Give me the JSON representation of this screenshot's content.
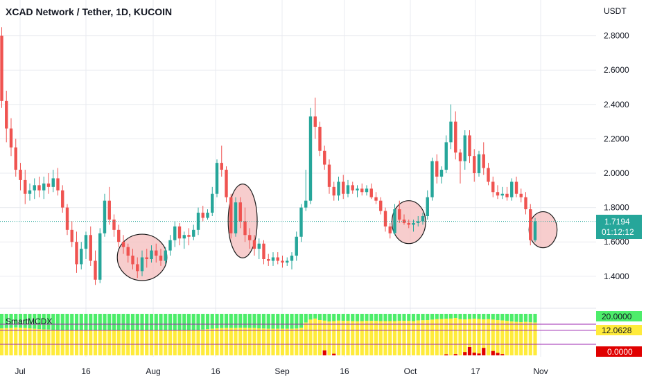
{
  "header": {
    "title": "XCAD Network / Tether, 1D, KUCOIN",
    "currency": "USDT"
  },
  "indicator": {
    "name": "SmartMCDX"
  },
  "colors": {
    "up": "#26a69a",
    "down": "#ef5350",
    "grid": "#e9ebf0",
    "highlight_fill": "#f4bcbc",
    "highlight_stroke": "#1b1b1b",
    "ind_green": "#4ded6a",
    "ind_yellow": "#ffeb3b",
    "ind_red": "#e00000",
    "ind_line": "#9c27b0",
    "current_price": "#26a69a"
  },
  "price_badge": {
    "price": "1.7194",
    "countdown": "01:12:12"
  },
  "indicator_badges": {
    "top": "20.0000",
    "mid": "12.0628",
    "bottom": "0.0000"
  },
  "chart_data": {
    "type": "candlestick",
    "title": "XCAD Network / Tether, 1D, KUCOIN",
    "y_axis_label": "USDT",
    "y_ticks": [
      "2.8000",
      "2.6000",
      "2.4000",
      "2.2000",
      "2.0000",
      "1.8000",
      "1.6000",
      "1.4000"
    ],
    "ylim": [
      1.3,
      2.88
    ],
    "x_ticks": [
      "Jul",
      "16",
      "Aug",
      "16",
      "Sep",
      "16",
      "Oct",
      "17",
      "Nov"
    ],
    "candles_ohlc": [
      [
        2.8,
        2.85,
        2.38,
        2.42
      ],
      [
        2.42,
        2.48,
        2.18,
        2.26
      ],
      [
        2.26,
        2.32,
        2.1,
        2.15
      ],
      [
        2.15,
        2.2,
        1.98,
        2.02
      ],
      [
        2.02,
        2.06,
        1.9,
        1.96
      ],
      [
        1.96,
        2.02,
        1.82,
        1.88
      ],
      [
        1.88,
        1.94,
        1.84,
        1.9
      ],
      [
        1.9,
        1.97,
        1.85,
        1.93
      ],
      [
        1.93,
        1.98,
        1.86,
        1.9
      ],
      [
        1.9,
        1.98,
        1.85,
        1.94
      ],
      [
        1.94,
        2.0,
        1.88,
        1.92
      ],
      [
        1.92,
        2.02,
        1.89,
        1.97
      ],
      [
        1.97,
        2.03,
        1.87,
        1.9
      ],
      [
        1.9,
        1.93,
        1.77,
        1.8
      ],
      [
        1.8,
        1.82,
        1.64,
        1.67
      ],
      [
        1.67,
        1.72,
        1.57,
        1.6
      ],
      [
        1.6,
        1.66,
        1.42,
        1.47
      ],
      [
        1.47,
        1.6,
        1.44,
        1.56
      ],
      [
        1.56,
        1.66,
        1.5,
        1.64
      ],
      [
        1.64,
        1.69,
        1.46,
        1.49
      ],
      [
        1.49,
        1.55,
        1.35,
        1.38
      ],
      [
        1.38,
        1.68,
        1.36,
        1.65
      ],
      [
        1.65,
        1.88,
        1.63,
        1.84
      ],
      [
        1.84,
        1.92,
        1.7,
        1.73
      ],
      [
        1.73,
        1.76,
        1.63,
        1.67
      ],
      [
        1.67,
        1.7,
        1.57,
        1.6
      ],
      [
        1.6,
        1.64,
        1.53,
        1.57
      ],
      [
        1.57,
        1.59,
        1.48,
        1.52
      ],
      [
        1.52,
        1.56,
        1.44,
        1.47
      ],
      [
        1.47,
        1.51,
        1.39,
        1.43
      ],
      [
        1.43,
        1.55,
        1.4,
        1.51
      ],
      [
        1.51,
        1.56,
        1.45,
        1.5
      ],
      [
        1.5,
        1.58,
        1.48,
        1.55
      ],
      [
        1.55,
        1.59,
        1.48,
        1.52
      ],
      [
        1.52,
        1.56,
        1.46,
        1.49
      ],
      [
        1.49,
        1.57,
        1.47,
        1.55
      ],
      [
        1.55,
        1.64,
        1.52,
        1.61
      ],
      [
        1.61,
        1.72,
        1.57,
        1.69
      ],
      [
        1.69,
        1.71,
        1.58,
        1.62
      ],
      [
        1.62,
        1.66,
        1.56,
        1.64
      ],
      [
        1.64,
        1.68,
        1.58,
        1.63
      ],
      [
        1.63,
        1.7,
        1.61,
        1.67
      ],
      [
        1.67,
        1.8,
        1.64,
        1.77
      ],
      [
        1.77,
        1.81,
        1.72,
        1.74
      ],
      [
        1.74,
        1.79,
        1.73,
        1.77
      ],
      [
        1.77,
        1.92,
        1.75,
        1.88
      ],
      [
        1.88,
        2.08,
        1.86,
        2.06
      ],
      [
        2.06,
        2.16,
        1.98,
        2.02
      ],
      [
        2.02,
        2.04,
        1.83,
        1.86
      ],
      [
        1.86,
        1.88,
        1.62,
        1.65
      ],
      [
        1.65,
        1.86,
        1.63,
        1.83
      ],
      [
        1.83,
        1.86,
        1.68,
        1.72
      ],
      [
        1.72,
        1.8,
        1.6,
        1.64
      ],
      [
        1.64,
        1.68,
        1.56,
        1.61
      ],
      [
        1.61,
        1.64,
        1.52,
        1.56
      ],
      [
        1.56,
        1.62,
        1.5,
        1.59
      ],
      [
        1.59,
        1.61,
        1.47,
        1.5
      ],
      [
        1.5,
        1.53,
        1.46,
        1.49
      ],
      [
        1.49,
        1.54,
        1.46,
        1.51
      ],
      [
        1.51,
        1.54,
        1.47,
        1.49
      ],
      [
        1.49,
        1.52,
        1.45,
        1.48
      ],
      [
        1.48,
        1.51,
        1.46,
        1.49
      ],
      [
        1.49,
        1.54,
        1.44,
        1.52
      ],
      [
        1.52,
        1.66,
        1.49,
        1.63
      ],
      [
        1.63,
        1.82,
        1.6,
        1.8
      ],
      [
        1.8,
        2.02,
        1.78,
        1.84
      ],
      [
        1.84,
        2.38,
        1.82,
        2.33
      ],
      [
        2.33,
        2.44,
        2.2,
        2.27
      ],
      [
        2.27,
        2.3,
        2.1,
        2.13
      ],
      [
        2.13,
        2.16,
        2.02,
        2.05
      ],
      [
        2.05,
        2.08,
        1.88,
        1.92
      ],
      [
        1.92,
        1.95,
        1.84,
        1.87
      ],
      [
        1.87,
        1.98,
        1.84,
        1.95
      ],
      [
        1.95,
        1.99,
        1.85,
        1.88
      ],
      [
        1.88,
        1.96,
        1.86,
        1.93
      ],
      [
        1.93,
        1.95,
        1.88,
        1.9
      ],
      [
        1.9,
        1.93,
        1.86,
        1.91
      ],
      [
        1.91,
        1.94,
        1.87,
        1.89
      ],
      [
        1.89,
        1.93,
        1.87,
        1.91
      ],
      [
        1.91,
        1.94,
        1.85,
        1.86
      ],
      [
        1.86,
        1.89,
        1.82,
        1.84
      ],
      [
        1.84,
        1.86,
        1.76,
        1.78
      ],
      [
        1.78,
        1.8,
        1.66,
        1.69
      ],
      [
        1.69,
        1.71,
        1.62,
        1.65
      ],
      [
        1.65,
        1.82,
        1.64,
        1.79
      ],
      [
        1.79,
        1.84,
        1.71,
        1.73
      ],
      [
        1.73,
        1.76,
        1.7,
        1.71
      ],
      [
        1.71,
        1.73,
        1.68,
        1.7
      ],
      [
        1.7,
        1.73,
        1.66,
        1.71
      ],
      [
        1.71,
        1.75,
        1.69,
        1.72
      ],
      [
        1.72,
        1.77,
        1.7,
        1.75
      ],
      [
        1.75,
        1.9,
        1.73,
        1.86
      ],
      [
        1.86,
        2.09,
        1.84,
        2.07
      ],
      [
        2.07,
        2.11,
        1.94,
        1.98
      ],
      [
        1.98,
        2.04,
        1.94,
        2.02
      ],
      [
        2.02,
        2.22,
        2.0,
        2.18
      ],
      [
        2.18,
        2.4,
        2.14,
        2.3
      ],
      [
        2.3,
        2.36,
        2.08,
        2.12
      ],
      [
        2.12,
        2.14,
        1.94,
        2.07
      ],
      [
        2.07,
        2.25,
        2.02,
        2.22
      ],
      [
        2.22,
        2.25,
        2.06,
        2.1
      ],
      [
        2.1,
        2.14,
        1.95,
        2.0
      ],
      [
        2.0,
        2.13,
        1.98,
        2.11
      ],
      [
        2.11,
        2.18,
        1.99,
        2.03
      ],
      [
        2.03,
        2.06,
        1.93,
        1.95
      ],
      [
        1.95,
        1.98,
        1.86,
        1.89
      ],
      [
        1.89,
        1.93,
        1.85,
        1.87
      ],
      [
        1.87,
        1.92,
        1.85,
        1.88
      ],
      [
        1.88,
        1.92,
        1.84,
        1.86
      ],
      [
        1.86,
        1.97,
        1.84,
        1.95
      ],
      [
        1.95,
        1.98,
        1.86,
        1.88
      ],
      [
        1.88,
        1.91,
        1.83,
        1.86
      ],
      [
        1.86,
        1.89,
        1.76,
        1.79
      ],
      [
        1.79,
        1.82,
        1.58,
        1.61
      ],
      [
        1.61,
        1.74,
        1.6,
        1.72
      ]
    ],
    "highlight_ellipses": [
      {
        "center_candle": 30,
        "center_price": 1.51,
        "radius_candles": 5.3,
        "radius_price": 0.135
      },
      {
        "center_candle": 51.5,
        "center_price": 1.722,
        "radius_candles": 3.1,
        "radius_price": 0.215
      },
      {
        "center_candle": 87,
        "center_price": 1.715,
        "radius_candles": 3.6,
        "radius_price": 0.125
      },
      {
        "center_candle": 115.7,
        "center_price": 1.671,
        "radius_candles": 3.0,
        "radius_price": 0.105
      }
    ],
    "indicator": {
      "name": "SmartMCDX",
      "range": [
        0,
        20
      ],
      "levels": [
        20,
        12.0628,
        0
      ],
      "green_top_value": 20,
      "yellow_tops": [
        13.0,
        13.1,
        13.2,
        13.4,
        13.3,
        13.2,
        13.0,
        12.8,
        12.6,
        12.5,
        12.4,
        12.3,
        12.2,
        12.1,
        12.0,
        12.0,
        12.0,
        12.0,
        12.0,
        12.0,
        12.0,
        12.0,
        12.0,
        12.0,
        12.0,
        12.0,
        12.0,
        12.0,
        12.0,
        12.0,
        12.0,
        12.0,
        12.0,
        12.0,
        12.0,
        12.0,
        12.0,
        12.0,
        12.0,
        12.0,
        12.0,
        12.0,
        12.2,
        12.4,
        12.6,
        12.8,
        13.0,
        13.1,
        13.2,
        13.2,
        13.2,
        13.3,
        13.3,
        13.2,
        13.2,
        13.0,
        12.9,
        12.8,
        12.8,
        12.8,
        12.8,
        12.8,
        12.8,
        12.9,
        13.3,
        15.8,
        17.2,
        17.7,
        17.0,
        16.7,
        16.3,
        16.5,
        16.7,
        16.6,
        16.6,
        16.5,
        16.4,
        16.5,
        16.6,
        16.6,
        16.6,
        16.5,
        16.5,
        16.5,
        16.5,
        16.6,
        16.6,
        16.6,
        16.5,
        16.8,
        16.9,
        17.0,
        17.2,
        17.4,
        17.5,
        17.6,
        17.7,
        18.0,
        17.4,
        17.3,
        17.5,
        17.6,
        17.5,
        17.3,
        17.4,
        17.2,
        17.0,
        16.8,
        16.6,
        16.3,
        16.1,
        16.0,
        16.1,
        15.9,
        15.8,
        15.5,
        15.3
      ],
      "red_bars": [
        {
          "candle": 69,
          "value": 2.4
        },
        {
          "candle": 71,
          "value": 0.8
        },
        {
          "candle": 95,
          "value": 0.5
        },
        {
          "candle": 97,
          "value": 0.6
        },
        {
          "candle": 99,
          "value": 1.6
        },
        {
          "candle": 100,
          "value": 4.0
        },
        {
          "candle": 101,
          "value": 1.3
        },
        {
          "candle": 102,
          "value": 0.9
        },
        {
          "candle": 103,
          "value": 3.6
        },
        {
          "candle": 105,
          "value": 2.1
        },
        {
          "candle": 106,
          "value": 1.2
        },
        {
          "candle": 107,
          "value": 0.6
        }
      ]
    },
    "last_price": 1.7194,
    "grid": true
  }
}
